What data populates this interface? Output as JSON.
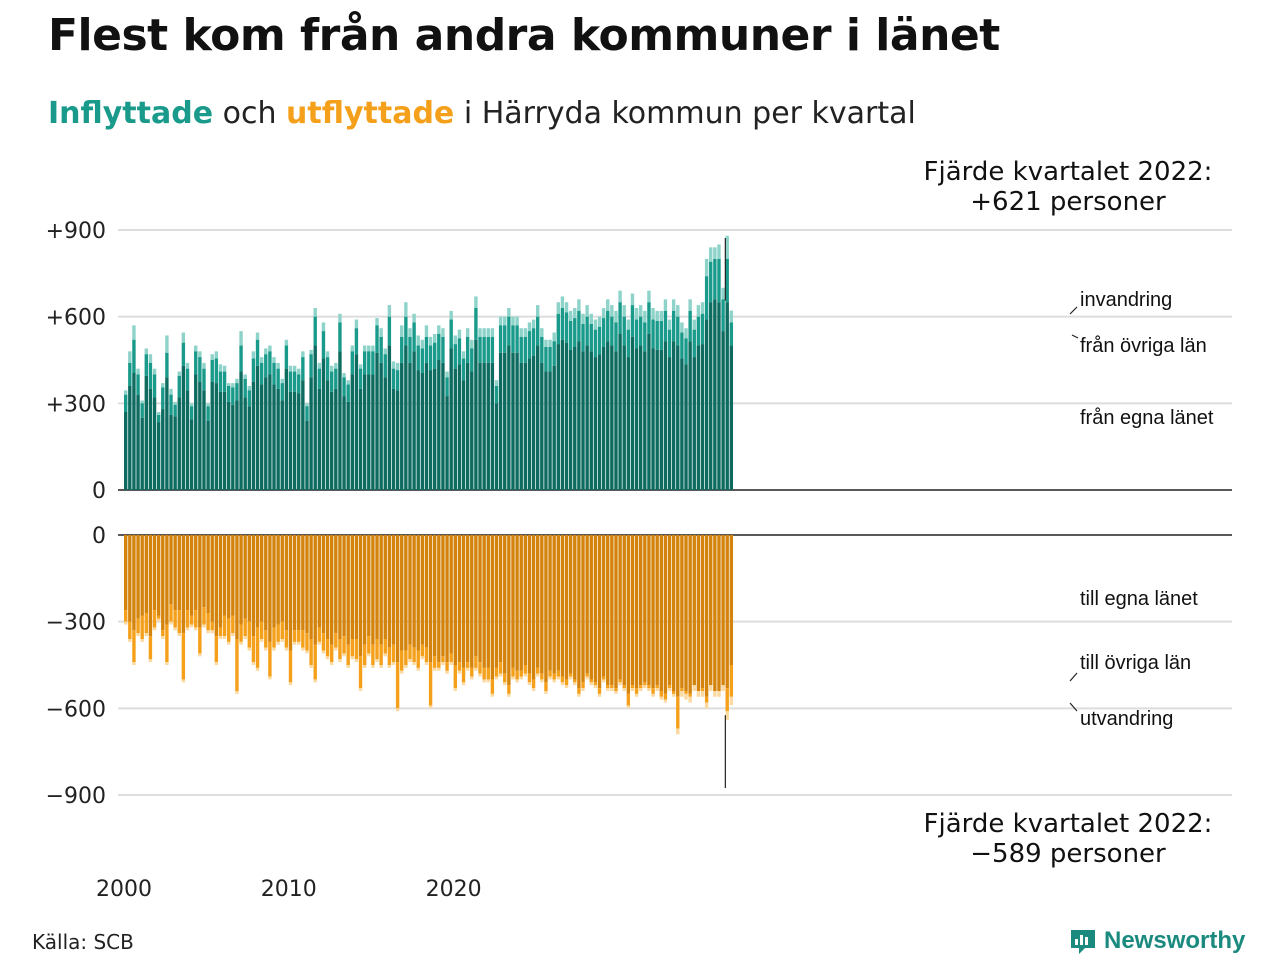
{
  "title": "Flest kom från andra kommuner i länet",
  "subtitle": {
    "in_word": "Inflyttade",
    "and_word": "och",
    "out_word": "utflyttade",
    "rest": "i Härryda kommun per kvartal"
  },
  "source": "Källa: SCB",
  "brand": "Newsworthy",
  "colors": {
    "in_own": "#0d6b60",
    "in_other": "#1a9a8b",
    "in_abroad": "#8ed3c9",
    "out_own": "#d4840d",
    "out_other": "#f5a01a",
    "out_abroad": "#fbd9a0"
  },
  "chart_data": {
    "type": "bar",
    "stacked": true,
    "period": "quarter",
    "start": "2000 Q1",
    "end": "2022 Q4",
    "x_ticks": [
      "2000",
      "2010",
      "2020"
    ],
    "y_ticks_top": [
      "+900",
      "+600",
      "+300",
      "0"
    ],
    "y_ticks_bottom": [
      "0",
      "−300",
      "−600",
      "−900"
    ],
    "ylim_top": [
      0,
      900
    ],
    "ylim_bottom": [
      -900,
      0
    ],
    "grid": true,
    "annotation_top": [
      "Fjärde kvartalet 2022:",
      "+621 personer"
    ],
    "annotation_bottom": [
      "Fjärde kvartalet 2022:",
      "−589 personer"
    ],
    "series_labels": {
      "in_abroad": "invandring",
      "in_other": "från övriga län",
      "in_own": "från egna länet",
      "out_own": "till egna länet",
      "out_other": "till övriga län",
      "out_abroad": "utvandring"
    },
    "inflow_total": [
      345,
      480,
      570,
      420,
      310,
      490,
      470,
      420,
      270,
      370,
      535,
      350,
      305,
      410,
      545,
      440,
      300,
      500,
      480,
      440,
      300,
      470,
      480,
      435,
      430,
      370,
      370,
      385,
      550,
      400,
      360,
      480,
      545,
      460,
      490,
      500,
      460,
      440,
      385,
      520,
      430,
      430,
      420,
      480,
      300,
      485,
      630,
      440,
      580,
      480,
      430,
      440,
      610,
      405,
      380,
      500,
      590,
      435,
      500,
      500,
      500,
      595,
      560,
      490,
      640,
      445,
      440,
      570,
      650,
      560,
      610,
      535,
      520,
      570,
      530,
      540,
      570,
      560,
      410,
      620,
      535,
      555,
      480,
      560,
      520,
      670,
      560,
      560,
      560,
      560,
      380,
      600,
      600,
      630,
      600,
      600,
      560,
      560,
      580,
      590,
      640,
      560,
      520,
      520,
      545,
      650,
      670,
      650,
      620,
      630,
      660,
      610,
      640,
      610,
      590,
      600,
      630,
      660,
      640,
      620,
      690,
      640,
      590,
      680,
      630,
      640,
      620,
      690,
      630,
      620,
      620,
      660,
      590,
      660,
      640,
      580,
      560,
      660,
      590,
      640,
      650,
      800,
      840,
      840,
      850,
      700,
      880,
      621
    ],
    "inflow_other": [
      330,
      440,
      520,
      400,
      300,
      470,
      440,
      400,
      260,
      355,
      475,
      330,
      295,
      395,
      510,
      420,
      290,
      480,
      460,
      420,
      290,
      450,
      455,
      410,
      410,
      360,
      355,
      370,
      500,
      385,
      345,
      455,
      520,
      440,
      470,
      480,
      440,
      420,
      370,
      500,
      410,
      410,
      400,
      460,
      290,
      470,
      600,
      420,
      550,
      460,
      410,
      420,
      580,
      390,
      365,
      480,
      560,
      420,
      480,
      480,
      480,
      570,
      530,
      470,
      600,
      420,
      415,
      530,
      600,
      530,
      580,
      500,
      490,
      530,
      500,
      510,
      540,
      530,
      390,
      590,
      505,
      525,
      455,
      530,
      490,
      630,
      530,
      530,
      530,
      530,
      360,
      570,
      570,
      600,
      570,
      570,
      530,
      530,
      550,
      560,
      600,
      530,
      495,
      495,
      515,
      610,
      630,
      615,
      585,
      595,
      620,
      575,
      600,
      575,
      555,
      565,
      595,
      620,
      600,
      580,
      650,
      600,
      555,
      640,
      590,
      600,
      580,
      650,
      590,
      585,
      585,
      620,
      555,
      620,
      600,
      545,
      525,
      620,
      555,
      600,
      610,
      740,
      790,
      800,
      800,
      660,
      800,
      580
    ],
    "inflow_own": [
      270,
      360,
      405,
      330,
      250,
      395,
      350,
      320,
      235,
      280,
      390,
      260,
      255,
      320,
      430,
      345,
      245,
      400,
      375,
      345,
      240,
      375,
      370,
      340,
      340,
      305,
      295,
      310,
      410,
      320,
      290,
      375,
      430,
      365,
      390,
      400,
      365,
      350,
      310,
      420,
      340,
      340,
      335,
      380,
      240,
      390,
      500,
      350,
      455,
      380,
      340,
      350,
      480,
      325,
      305,
      400,
      470,
      350,
      400,
      400,
      400,
      475,
      440,
      390,
      500,
      350,
      345,
      440,
      500,
      440,
      480,
      415,
      405,
      440,
      415,
      420,
      450,
      440,
      325,
      490,
      420,
      435,
      380,
      440,
      410,
      520,
      440,
      440,
      440,
      440,
      300,
      475,
      475,
      500,
      475,
      475,
      440,
      440,
      455,
      465,
      500,
      440,
      410,
      410,
      430,
      505,
      520,
      510,
      485,
      495,
      515,
      480,
      500,
      480,
      460,
      470,
      495,
      515,
      500,
      480,
      540,
      500,
      460,
      530,
      490,
      500,
      480,
      540,
      490,
      485,
      485,
      515,
      460,
      515,
      500,
      455,
      435,
      515,
      460,
      500,
      505,
      590,
      650,
      660,
      650,
      550,
      650,
      500
    ],
    "outflow_own": [
      -260,
      -300,
      -330,
      -290,
      -280,
      -270,
      -350,
      -260,
      -280,
      -330,
      -310,
      -240,
      -260,
      -260,
      -340,
      -260,
      -280,
      -260,
      -320,
      -250,
      -270,
      -300,
      -350,
      -320,
      -280,
      -290,
      -280,
      -360,
      -310,
      -290,
      -300,
      -350,
      -320,
      -300,
      -330,
      -370,
      -320,
      -310,
      -300,
      -330,
      -400,
      -330,
      -330,
      -330,
      -340,
      -360,
      -380,
      -320,
      -340,
      -360,
      -380,
      -340,
      -360,
      -350,
      -380,
      -360,
      -360,
      -420,
      -380,
      -350,
      -380,
      -360,
      -380,
      -360,
      -390,
      -380,
      -440,
      -400,
      -400,
      -380,
      -390,
      -400,
      -380,
      -390,
      -440,
      -420,
      -440,
      -420,
      -440,
      -410,
      -450,
      -440,
      -460,
      -440,
      -460,
      -420,
      -440,
      -460,
      -460,
      -500,
      -460,
      -440,
      -480,
      -520,
      -460,
      -470,
      -470,
      -450,
      -480,
      -500,
      -460,
      -480,
      -510,
      -470,
      -480,
      -470,
      -490,
      -500,
      -480,
      -500,
      -530,
      -510,
      -480,
      -500,
      -510,
      -530,
      -490,
      -520,
      -520,
      -530,
      -500,
      -520,
      -550,
      -520,
      -530,
      -520,
      -510,
      -520,
      -530,
      -520,
      -540,
      -550,
      -520,
      -540,
      -560,
      -530,
      -540,
      -550,
      -520,
      -540,
      -530,
      -560,
      -520,
      -540,
      -540,
      -520,
      -530,
      -450
    ],
    "outflow_total": [
      -310,
      -370,
      -450,
      -350,
      -370,
      -350,
      -440,
      -330,
      -300,
      -360,
      -450,
      -310,
      -330,
      -350,
      -510,
      -330,
      -320,
      -330,
      -420,
      -320,
      -340,
      -340,
      -450,
      -360,
      -360,
      -380,
      -350,
      -550,
      -380,
      -360,
      -400,
      -450,
      -470,
      -370,
      -400,
      -500,
      -400,
      -380,
      -370,
      -400,
      -520,
      -380,
      -380,
      -400,
      -410,
      -460,
      -510,
      -380,
      -410,
      -430,
      -450,
      -400,
      -440,
      -420,
      -460,
      -430,
      -440,
      -540,
      -460,
      -420,
      -460,
      -440,
      -460,
      -420,
      -460,
      -450,
      -610,
      -480,
      -460,
      -440,
      -450,
      -470,
      -430,
      -450,
      -600,
      -470,
      -470,
      -450,
      -480,
      -450,
      -540,
      -480,
      -520,
      -470,
      -500,
      -470,
      -490,
      -510,
      -510,
      -560,
      -500,
      -490,
      -520,
      -560,
      -500,
      -510,
      -500,
      -490,
      -520,
      -540,
      -490,
      -510,
      -550,
      -500,
      -510,
      -500,
      -520,
      -530,
      -500,
      -520,
      -560,
      -540,
      -500,
      -520,
      -530,
      -560,
      -510,
      -540,
      -540,
      -550,
      -520,
      -540,
      -600,
      -540,
      -560,
      -540,
      -530,
      -540,
      -560,
      -540,
      -570,
      -580,
      -540,
      -560,
      -690,
      -560,
      -570,
      -580,
      -540,
      -560,
      -560,
      -600,
      -540,
      -560,
      -560,
      -540,
      -640,
      -589
    ],
    "outflow_other": [
      -300,
      -360,
      -440,
      -340,
      -360,
      -340,
      -430,
      -320,
      -290,
      -350,
      -440,
      -300,
      -320,
      -340,
      -500,
      -320,
      -310,
      -320,
      -410,
      -310,
      -330,
      -330,
      -440,
      -350,
      -350,
      -370,
      -340,
      -540,
      -370,
      -350,
      -390,
      -440,
      -460,
      -360,
      -390,
      -490,
      -390,
      -370,
      -360,
      -390,
      -510,
      -370,
      -370,
      -390,
      -400,
      -450,
      -500,
      -370,
      -400,
      -420,
      -440,
      -390,
      -430,
      -410,
      -450,
      -420,
      -430,
      -530,
      -450,
      -410,
      -450,
      -430,
      -450,
      -410,
      -450,
      -440,
      -600,
      -470,
      -450,
      -430,
      -440,
      -460,
      -420,
      -440,
      -590,
      -460,
      -460,
      -440,
      -470,
      -440,
      -530,
      -470,
      -510,
      -460,
      -490,
      -460,
      -480,
      -500,
      -500,
      -550,
      -490,
      -480,
      -510,
      -550,
      -490,
      -500,
      -490,
      -480,
      -510,
      -530,
      -480,
      -500,
      -540,
      -490,
      -500,
      -490,
      -510,
      -520,
      -490,
      -510,
      -550,
      -530,
      -490,
      -510,
      -520,
      -550,
      -500,
      -530,
      -530,
      -540,
      -510,
      -530,
      -590,
      -530,
      -550,
      -530,
      -520,
      -530,
      -550,
      -530,
      -560,
      -570,
      -530,
      -550,
      -670,
      -540,
      -550,
      -560,
      -520,
      -540,
      -540,
      -580,
      -520,
      -540,
      -540,
      -520,
      -610,
      -560
    ]
  }
}
